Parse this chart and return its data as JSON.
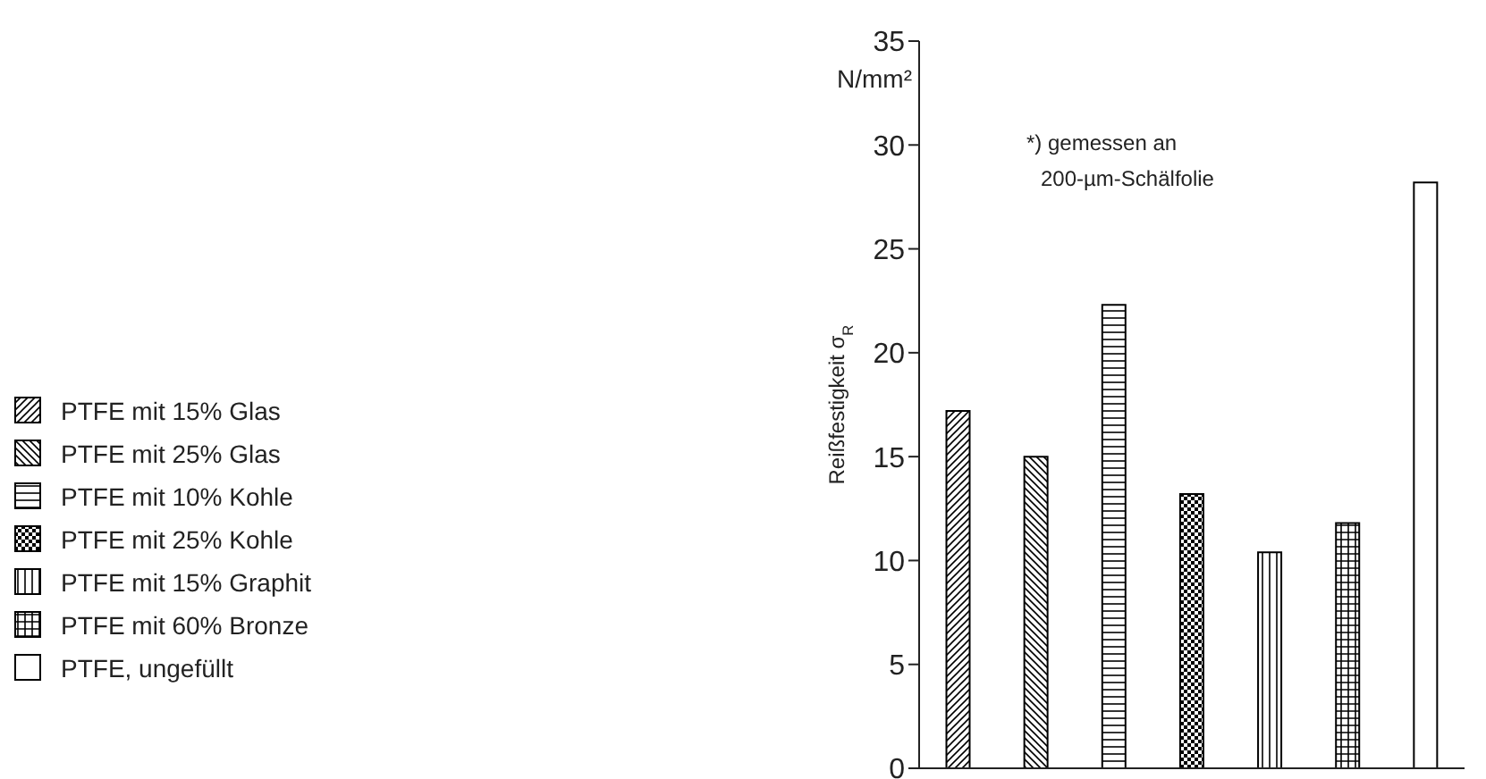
{
  "chart_data": {
    "type": "bar",
    "stacked": true,
    "ylabel": "Reißfestigkeit σ$_{R}$",
    "categories": [
      null,
      null,
      null,
      null,
      null,
      null,
      null
    ],
    "series": [
      {
        "name": "PTFE mit 15% Glas",
        "color": "#000000",
        "values": [
          17.2,
          null,
          null,
          null,
          null,
          null,
          null
        ]
      },
      {
        "name": "PTFE mit 25% Glas",
        "color": "#000000",
        "values": [
          null,
          15.0,
          null,
          null,
          null,
          null,
          null
        ]
      },
      {
        "name": "PTFE mit 10% Kohle",
        "color": "#000000",
        "values": [
          null,
          null,
          22.3,
          null,
          null,
          null,
          null
        ]
      },
      {
        "name": "PTFE mit 25% Kohle",
        "color": "#000000",
        "values": [
          null,
          null,
          null,
          13.2,
          null,
          null,
          null
        ]
      },
      {
        "name": "PTFE mit 15% Graphit",
        "color": "#000000",
        "values": [
          null,
          null,
          null,
          null,
          10.4,
          null,
          null
        ]
      },
      {
        "name": "PTFE mit 60% Bronze",
        "color": "#000000",
        "values": [
          null,
          null,
          null,
          null,
          null,
          11.8,
          null
        ]
      },
      {
        "name": "PTFE, ungefüllt",
        "color": "#000000",
        "values": [
          null,
          null,
          null,
          null,
          null,
          null,
          28.2
        ]
      }
    ],
    "ylim": [
      0,
      35
    ],
    "yticks": [
      0,
      5,
      10,
      15,
      20,
      25,
      30,
      35
    ],
    "grid": false,
    "legend": "left",
    "annotations": [
      "N/mm²",
      "*) gemessen an\n200-µm-Schälfolie"
    ]
  }
}
